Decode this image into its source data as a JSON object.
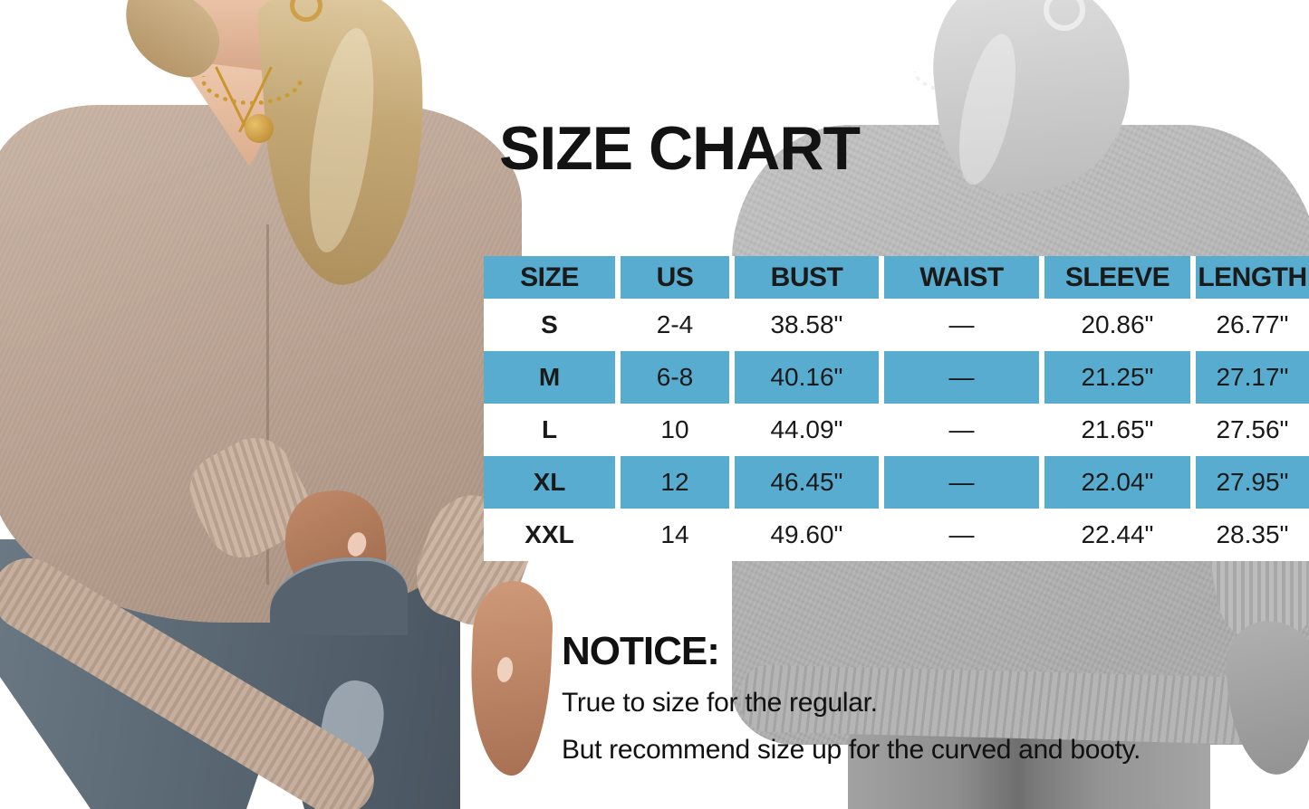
{
  "title": "SIZE CHART",
  "colors": {
    "accent_blue": "#58ACCF",
    "row_white": "#FFFFFF",
    "text": "#1A1A1A"
  },
  "size_chart": {
    "columns": [
      "SIZE",
      "US",
      "BUST",
      "WAIST",
      "SLEEVE",
      "LENGTH"
    ],
    "rows": [
      {
        "size": "S",
        "us": "2-4",
        "bust": "38.58\"",
        "waist": "—",
        "sleeve": "20.86\"",
        "length": "26.77\""
      },
      {
        "size": "M",
        "us": "6-8",
        "bust": "40.16\"",
        "waist": "—",
        "sleeve": "21.25\"",
        "length": "27.17\""
      },
      {
        "size": "L",
        "us": "10",
        "bust": "44.09\"",
        "waist": "—",
        "sleeve": "21.65\"",
        "length": "27.56\""
      },
      {
        "size": "XL",
        "us": "12",
        "bust": "46.45\"",
        "waist": "—",
        "sleeve": "22.04\"",
        "length": "27.95\""
      },
      {
        "size": "XXL",
        "us": "14",
        "bust": "49.60\"",
        "waist": "—",
        "sleeve": "22.44\"",
        "length": "28.35\""
      }
    ],
    "highlighted_rows": [
      "M",
      "XL"
    ]
  },
  "notice": {
    "heading": "NOTICE:",
    "lines": [
      "True to size for the regular.",
      "But recommend size up for the curved and booty."
    ]
  }
}
